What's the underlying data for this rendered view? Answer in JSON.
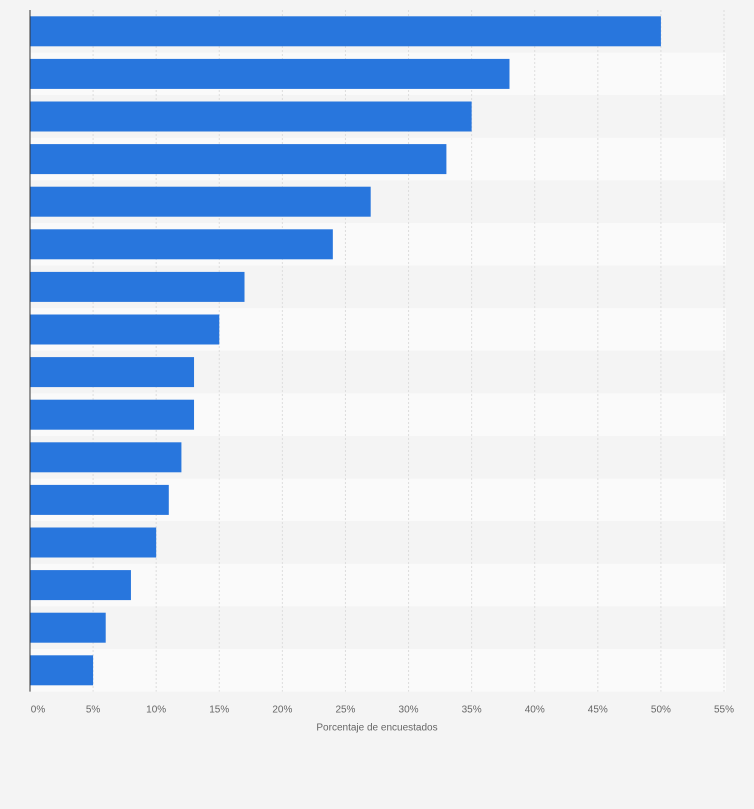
{
  "chart_data": {
    "type": "bar",
    "orientation": "horizontal",
    "title": "",
    "xlabel": "Porcentaje de encuestados",
    "ylabel": "",
    "category_labels_visible": false,
    "values": [
      50,
      38,
      35,
      33,
      27,
      24,
      17,
      15,
      13,
      13,
      12,
      11,
      10,
      8,
      6,
      5
    ],
    "xlim": [
      0,
      55
    ],
    "xticks": [
      0,
      5,
      10,
      15,
      20,
      25,
      30,
      35,
      40,
      45,
      50,
      55
    ],
    "xtick_labels": [
      "0%",
      "5%",
      "10%",
      "15%",
      "20%",
      "25%",
      "30%",
      "35%",
      "40%",
      "45%",
      "50%",
      "55%"
    ],
    "grid": true,
    "legend": "none",
    "bar_color": "#2876dd",
    "background_color": "#f4f4f4",
    "band_colors": [
      "#f4f4f4",
      "#fafafa"
    ],
    "grid_color": "#dddddd",
    "axis_color": "#333333",
    "text_color": "#666666"
  }
}
